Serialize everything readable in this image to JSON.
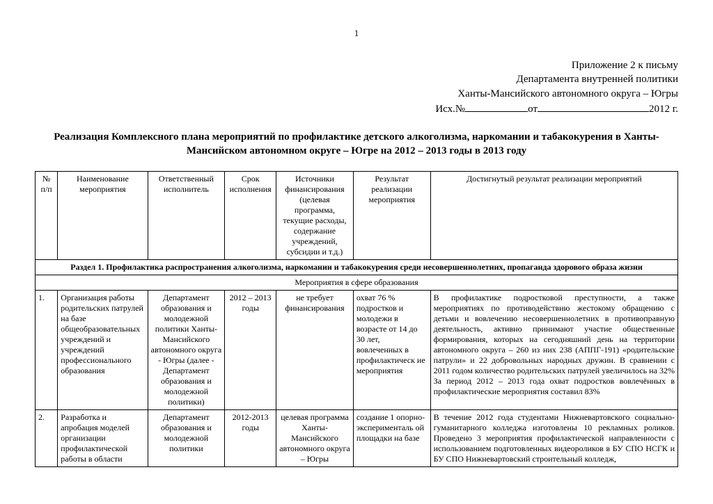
{
  "page_number": "1",
  "header": {
    "line1": "Приложение 2 к письму",
    "line2": "Департамента внутренней политики",
    "line3": "Ханты-Мансийского автономного округа – Югры",
    "ref_prefix": "Исх.№",
    "ref_mid": "от",
    "ref_suffix": "2012 г."
  },
  "title": "Реализация Комплексного плана мероприятий по профилактике детского алкоголизма, наркомании и табакокурения в Ханты-Мансийском автономном округе – Югре на 2012 – 2013 годы в 2013 году",
  "columns": {
    "c1": "№ п/п",
    "c2": "Наименование мероприятия",
    "c3": "Ответственный исполнитель",
    "c4": "Срок исполнения",
    "c5": "Источники финансирования (целевая программа, текущие расходы, содержание учреждений, субсидии и т.д.)",
    "c6": "Результат реализации мероприятия",
    "c7": "Достигнутый результат реализации мероприятий"
  },
  "section1": "Раздел 1. Профилактика распространения алкоголизма, наркомании и табакокурения среди несовершеннолетних, пропаганда здорового образа жизни",
  "subsection1": "Мероприятия в сфере образования",
  "rows": [
    {
      "num": "1.",
      "name": "Организация работы родительских патрулей на базе общеобразовательных учреждений и учреждений профессионального образования",
      "resp": "Департамент образования и молодежной политики Ханты-Мансийского автономного округа - Югры (далее - Департамент образования и молодежной политики)",
      "term": "2012 – 2013 годы",
      "src": "не требует финансирования",
      "res": "охват 76 % подростков и молодежи в возрасте от 14 до 30 лет, вовлеченных в профилактическ ие мероприятия",
      "ach": "В профилактике подростковой преступности, а также мероприятиях по противодействию жестокому обращению с детьми и вовлечению несовершеннолетних в противоправную деятельность, активно принимают участие общественные формирования, которых на сегодняшний день на территории автономного округа – 260 из них 238 (АППГ-191) «родительские патрули» и 22 добровольных народных дружин. В сравнении с 2011 годом количество родительских патрулей увеличилось на 32%\nЗа период 2012 – 2013 года охват подростков вовлечённых в профилактические мероприятия составил 83%"
    },
    {
      "num": "2.",
      "name": "Разработка и апробация моделей организации профилактической работы в области",
      "resp": "Департамент образования и молодежной политики",
      "term": "2012-2013 годы",
      "src": "целевая программа Ханты-Мансийского автономного округа – Югры",
      "res": "создание 1 опорно-эксперименталь ой площадки на базе",
      "ach": "В течение 2012 года студентами Нижневартовского социально-гуманитарного колледжа изготовлены 10 рекламных роликов. Проведено 3 мероприятия профилактической направленности с использованием подготовленных видеороликов в БУ СПО НСГК и БУ СПО Нижневартовский строительный колледж,"
    }
  ]
}
